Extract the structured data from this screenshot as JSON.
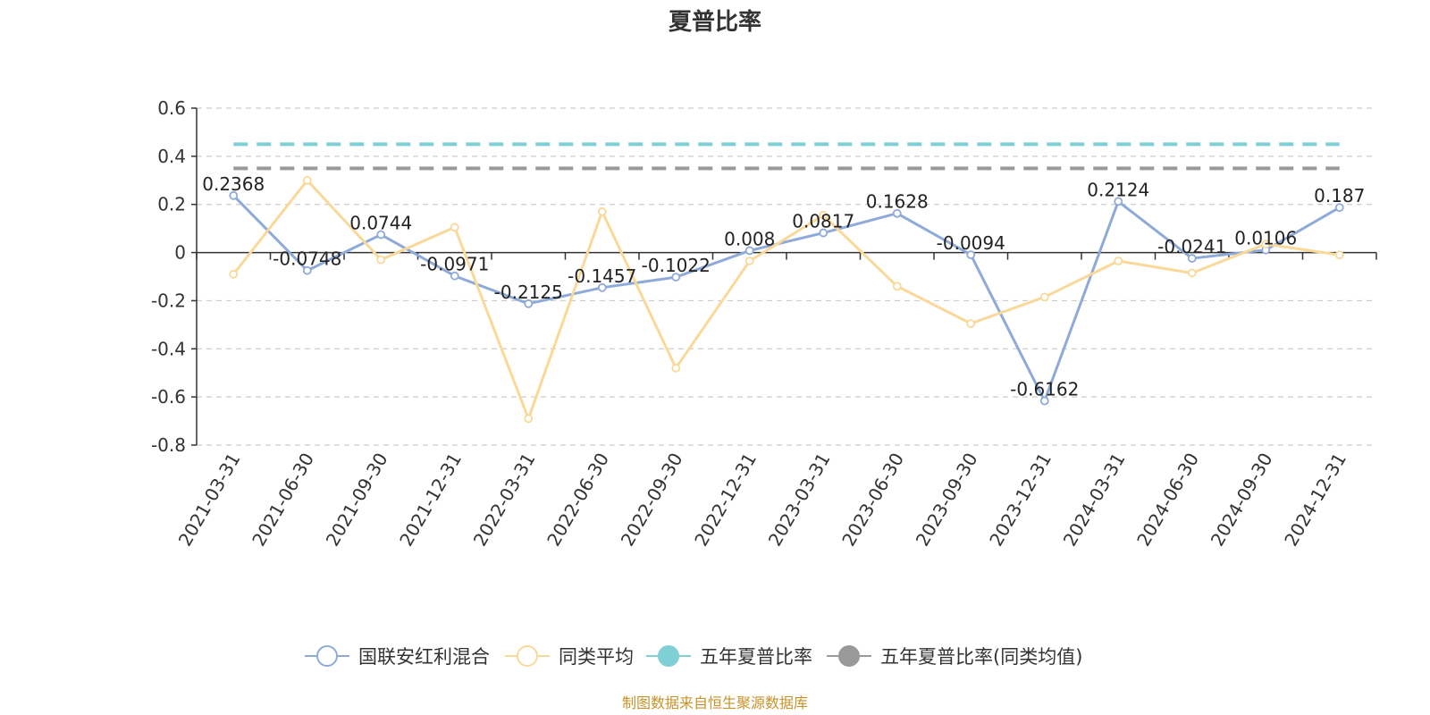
{
  "chart_data": {
    "type": "line",
    "title": "夏普比率",
    "categories": [
      "2021-03-31",
      "2021-06-30",
      "2021-09-30",
      "2021-12-31",
      "2022-03-31",
      "2022-06-30",
      "2022-09-30",
      "2022-12-31",
      "2023-03-31",
      "2023-06-30",
      "2023-09-30",
      "2023-12-31",
      "2024-03-31",
      "2024-06-30",
      "2024-09-30",
      "2024-12-31"
    ],
    "ylim": [
      -0.8,
      0.6
    ],
    "yticks": [
      "0.6",
      "0.4",
      "0.2",
      "0",
      "-0.2",
      "-0.4",
      "-0.6",
      "-0.8"
    ],
    "ytick_values": [
      0.6,
      0.4,
      0.2,
      0,
      -0.2,
      -0.4,
      -0.6,
      -0.8
    ],
    "grid": true,
    "legend_position": "bottom",
    "series": [
      {
        "name": "国联安红利混合",
        "color": "#8eaad8",
        "values": [
          0.2368,
          -0.0748,
          0.0744,
          -0.0971,
          -0.2125,
          -0.1457,
          -0.1022,
          0.008,
          0.0817,
          0.1628,
          -0.0094,
          -0.6162,
          0.2124,
          -0.0241,
          0.0106,
          0.187
        ],
        "labels": [
          "0.2368",
          "-0.0748",
          "0.0744",
          "-0.0971",
          "-0.2125",
          "-0.1457",
          "-0.1022",
          "0.008",
          "0.0817",
          "0.1628",
          "-0.0094",
          "-0.6162",
          "0.2124",
          "-0.0241",
          "0.0106",
          "0.187"
        ]
      },
      {
        "name": "同类平均",
        "color": "#f9d99a",
        "values": [
          -0.09,
          0.3,
          -0.03,
          0.105,
          -0.69,
          0.17,
          -0.48,
          -0.035,
          0.155,
          -0.14,
          -0.295,
          -0.185,
          -0.035,
          -0.085,
          0.035,
          -0.01
        ]
      },
      {
        "name": "五年夏普比率",
        "color": "#7fd0d4",
        "constant": 0.45
      },
      {
        "name": "五年夏普比率(同类均值)",
        "color": "#999999",
        "constant": 0.35
      }
    ],
    "source": "制图数据来自恒生聚源数据库"
  }
}
